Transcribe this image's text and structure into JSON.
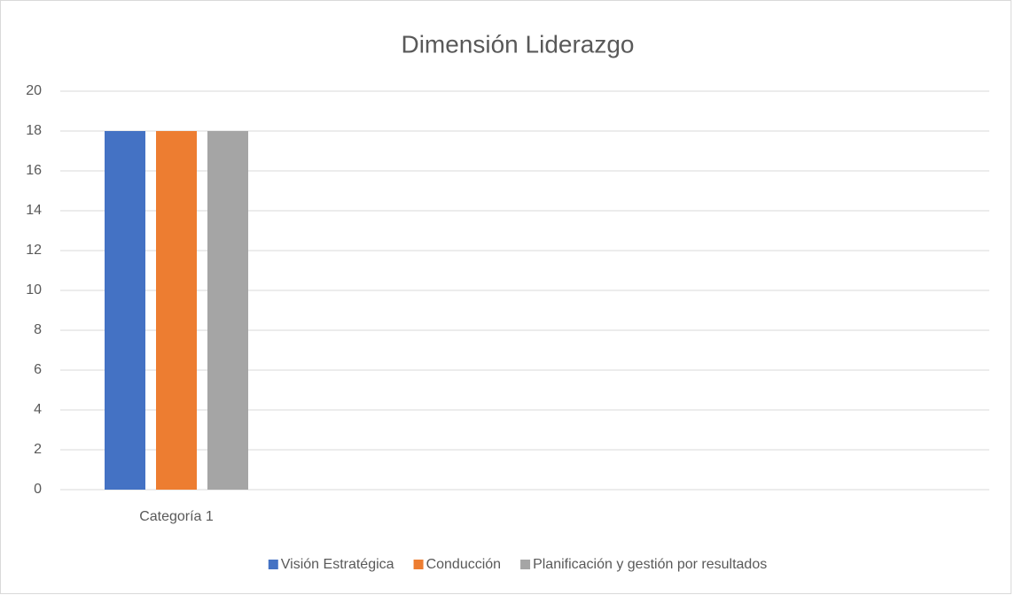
{
  "chart_data": {
    "type": "bar",
    "title": "Dimensión Liderazgo",
    "categories": [
      "Categoría 1",
      null,
      null,
      null
    ],
    "series": [
      {
        "name": "Visión Estratégica",
        "color": "#4472c4",
        "values": [
          18,
          null,
          null,
          null
        ]
      },
      {
        "name": "Conducción",
        "color": "#ed7d31",
        "values": [
          18,
          null,
          null,
          null
        ]
      },
      {
        "name": "Planificación y gestión por resultados",
        "color": "#a5a5a5",
        "values": [
          18,
          null,
          null,
          null
        ]
      }
    ],
    "ylim": [
      0,
      20
    ],
    "yticks": [
      0,
      2,
      4,
      6,
      8,
      10,
      12,
      14,
      16,
      18,
      20
    ],
    "grid": true,
    "legend": "bottom"
  }
}
